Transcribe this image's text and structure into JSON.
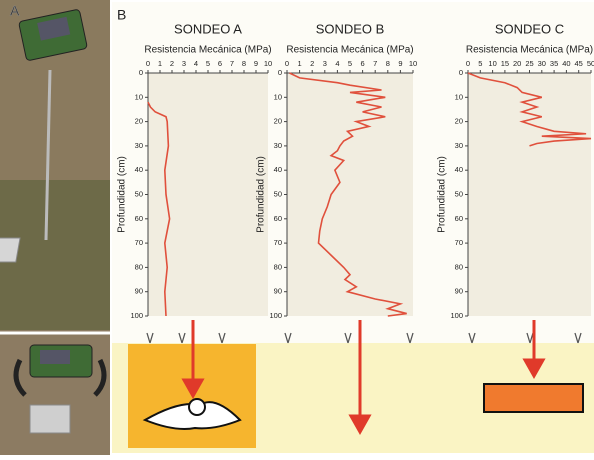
{
  "panel_labels": [
    "A",
    "B"
  ],
  "chart_data": [
    {
      "type": "line",
      "title": "SONDEO A",
      "xlabel": "Resistencia Mecánica (MPa)",
      "ylabel": "Profundidad (cm)",
      "color": "#e0503c",
      "x": [
        0,
        0.2,
        0.6,
        1.5,
        1.6,
        1.7,
        1.4,
        1.5,
        1.8,
        1.4,
        1.6,
        1.4,
        1.5
      ],
      "values": [
        12,
        14,
        16,
        18,
        20,
        30,
        40,
        50,
        60,
        70,
        80,
        90,
        100
      ],
      "xlim": [
        0,
        10
      ],
      "ylim": [
        0,
        100
      ],
      "y_inverted": true,
      "xticks": [
        0,
        1,
        2,
        3,
        4,
        5,
        6,
        7,
        8,
        9,
        10
      ],
      "yticks": [
        0,
        10,
        20,
        30,
        40,
        50,
        60,
        70,
        80,
        90,
        100
      ]
    },
    {
      "type": "line",
      "title": "SONDEO B",
      "xlabel": "Resistencia Mecánica (MPa)",
      "ylabel": "Profundidad (cm)",
      "color": "#e0503c",
      "x": [
        0.2,
        1,
        4,
        5,
        7.5,
        5,
        7.8,
        5.5,
        7.5,
        6,
        7.8,
        5.5,
        6.5,
        4.8,
        5.2,
        4.5,
        4.2,
        4,
        3.5,
        4.5,
        3.8,
        4.2,
        3.5,
        3.2,
        2.8,
        2.6,
        2.5,
        3.5,
        4.5,
        5,
        4.6,
        5.5,
        4.8,
        7,
        9,
        8,
        9.5,
        8
      ],
      "values": [
        0,
        2,
        4,
        5,
        7,
        8,
        10,
        12,
        14,
        16,
        18,
        20,
        22,
        24,
        26,
        28,
        30,
        32,
        34,
        36,
        40,
        45,
        50,
        55,
        60,
        65,
        70,
        75,
        80,
        83,
        85,
        88,
        90,
        93,
        95,
        97,
        99,
        100
      ],
      "xlim": [
        0,
        10
      ],
      "ylim": [
        0,
        100
      ],
      "y_inverted": true,
      "xticks": [
        0,
        1,
        2,
        3,
        4,
        5,
        6,
        7,
        8,
        9,
        10
      ],
      "yticks": [
        0,
        10,
        20,
        30,
        40,
        50,
        60,
        70,
        80,
        90,
        100
      ]
    },
    {
      "type": "line",
      "title": "SONDEO C",
      "xlabel": "Resistencia Mecánica (MPa)",
      "ylabel": "Profundidad (cm)",
      "color": "#e0503c",
      "x": [
        0,
        5,
        15,
        20,
        22,
        30,
        22,
        28,
        22,
        30,
        22,
        28,
        35,
        48,
        30,
        50,
        35,
        28,
        25
      ],
      "values": [
        0,
        2,
        4,
        6,
        8,
        10,
        12,
        14,
        16,
        18,
        20,
        22,
        24,
        25,
        26,
        27,
        28,
        29,
        30
      ],
      "xlim": [
        0,
        50
      ],
      "ylim": [
        0,
        100
      ],
      "y_inverted": true,
      "xticks": [
        0,
        5,
        10,
        15,
        20,
        25,
        30,
        35,
        40,
        45,
        50
      ],
      "yticks": [
        0,
        10,
        20,
        30,
        40,
        50,
        60,
        70,
        80,
        90,
        100
      ]
    }
  ]
}
